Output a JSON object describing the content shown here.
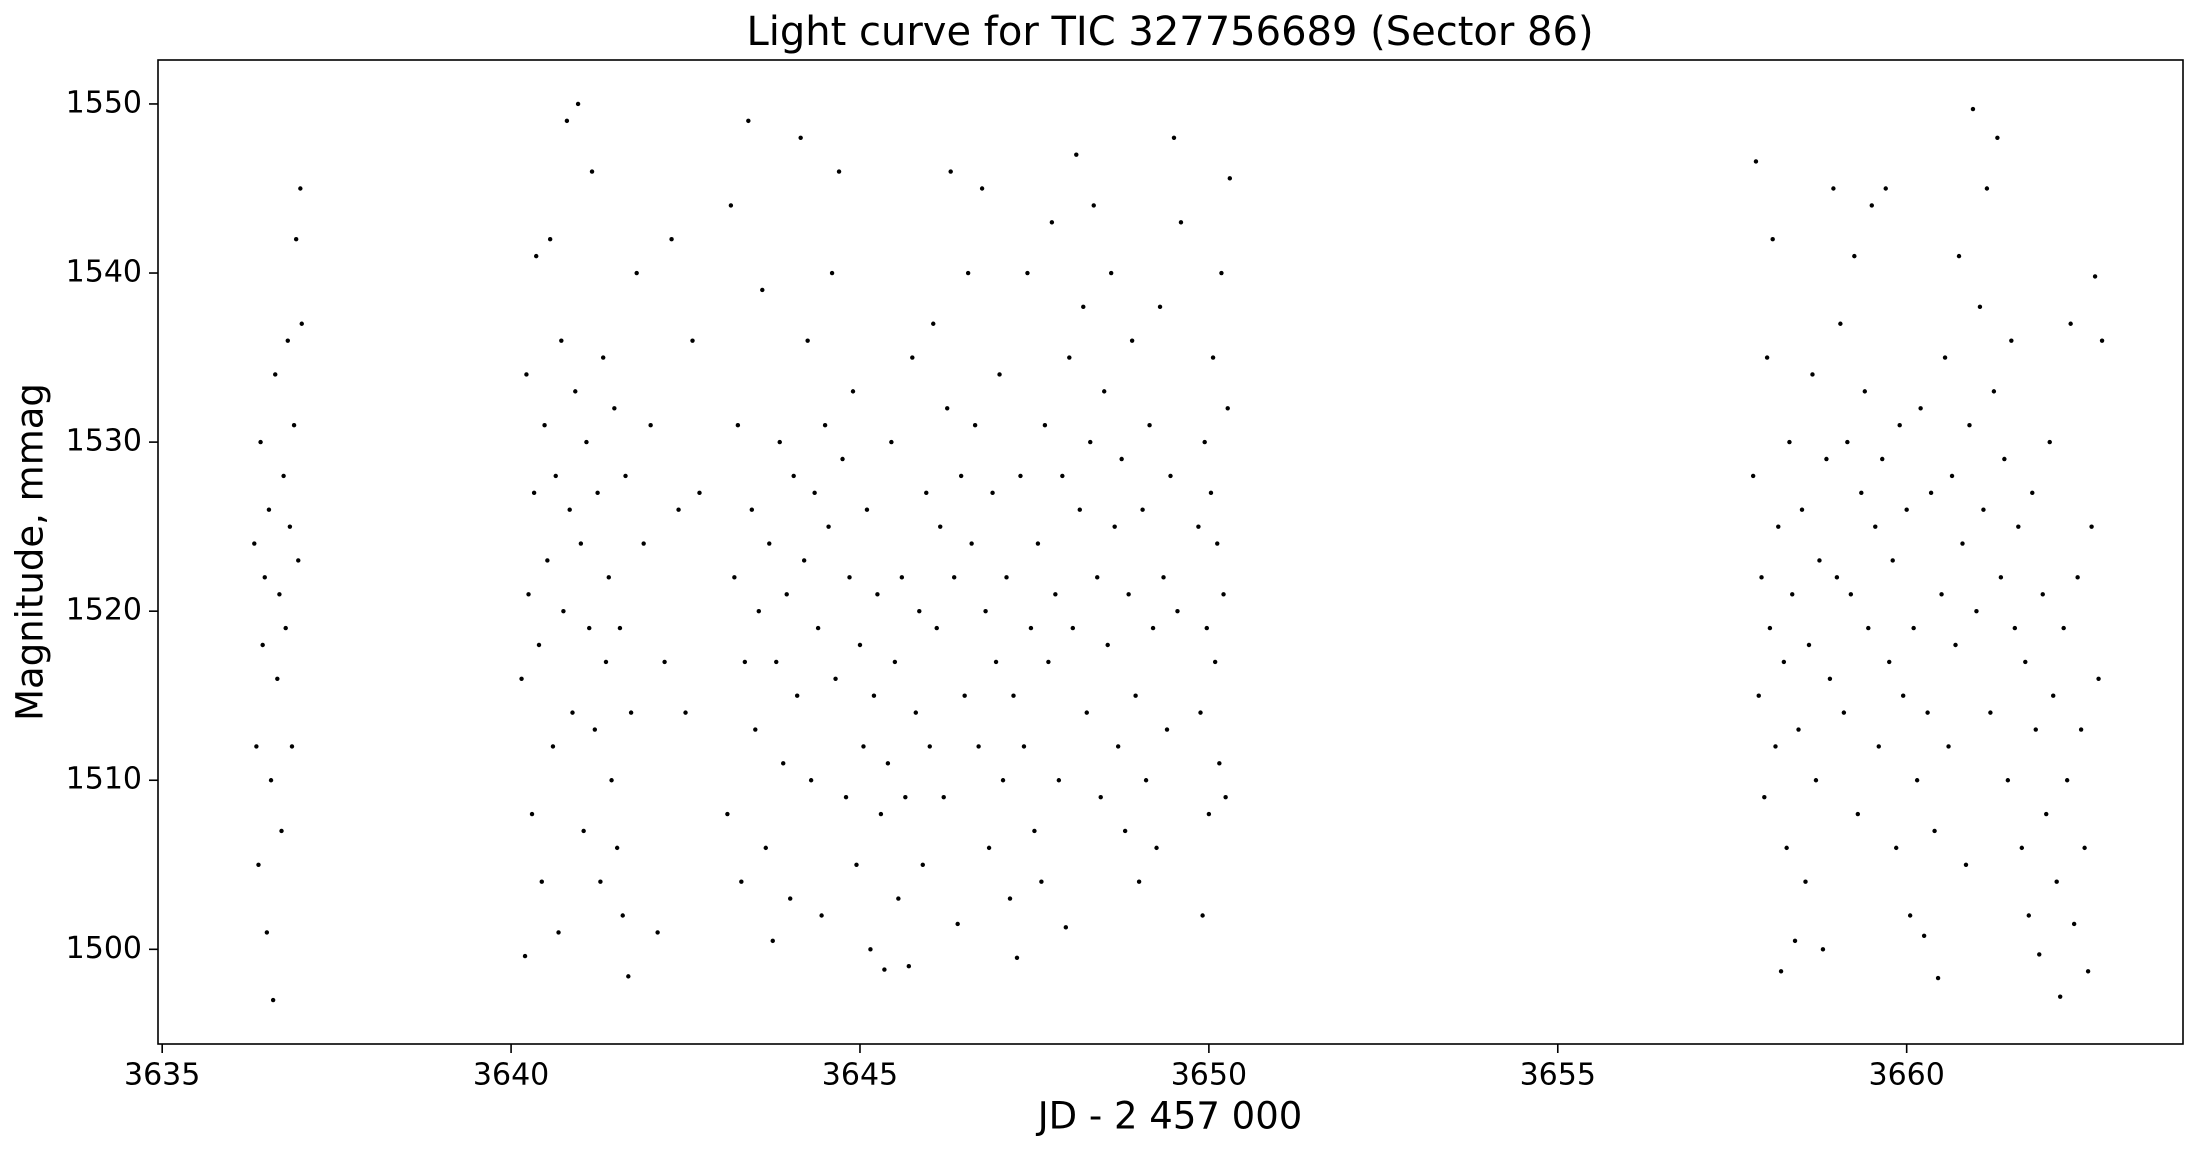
{
  "chart_data": {
    "type": "scatter",
    "title": "Light curve for TIC 327756689 (Sector 86)",
    "x_label": "JD - 2 457 000",
    "y_label": "Magnitude, mmag",
    "xlim": [
      3634.94,
      3663.96
    ],
    "ylim": [
      1494.4,
      1552.6
    ],
    "xticks": [
      3635,
      3640,
      3645,
      3650,
      3655,
      3660
    ],
    "yticks": [
      1500,
      1510,
      1520,
      1530,
      1540,
      1550
    ],
    "color": "#000000",
    "x": [
      3636.32,
      3636.35,
      3636.38,
      3636.41,
      3636.44,
      3636.47,
      3636.5,
      3636.53,
      3636.56,
      3636.59,
      3636.62,
      3636.65,
      3636.68,
      3636.71,
      3636.74,
      3636.77,
      3636.8,
      3636.83,
      3636.86,
      3636.89,
      3636.92,
      3636.95,
      3636.98,
      3637,
      3640.15,
      3640.2,
      3640.22,
      3640.25,
      3640.3,
      3640.33,
      3640.36,
      3640.4,
      3640.44,
      3640.48,
      3640.52,
      3640.56,
      3640.6,
      3640.64,
      3640.68,
      3640.72,
      3640.75,
      3640.8,
      3640.84,
      3640.88,
      3640.92,
      3640.96,
      3641,
      3641.04,
      3641.08,
      3641.12,
      3641.16,
      3641.2,
      3641.24,
      3641.28,
      3641.32,
      3641.36,
      3641.4,
      3641.44,
      3641.48,
      3641.52,
      3641.56,
      3641.6,
      3641.64,
      3641.68,
      3641.72,
      3641.8,
      3641.9,
      3642,
      3642.1,
      3642.2,
      3642.3,
      3642.4,
      3642.5,
      3642.6,
      3642.7,
      3643.1,
      3643.15,
      3643.2,
      3643.25,
      3643.3,
      3643.35,
      3643.4,
      3643.45,
      3643.5,
      3643.55,
      3643.6,
      3643.65,
      3643.7,
      3643.75,
      3643.8,
      3643.85,
      3643.9,
      3643.95,
      3644,
      3644.05,
      3644.1,
      3644.15,
      3644.2,
      3644.25,
      3644.3,
      3644.35,
      3644.4,
      3644.45,
      3644.5,
      3644.55,
      3644.6,
      3644.65,
      3644.7,
      3644.75,
      3644.8,
      3644.85,
      3644.9,
      3644.95,
      3645,
      3645.05,
      3645.1,
      3645.15,
      3645.2,
      3645.25,
      3645.3,
      3645.35,
      3645.4,
      3645.45,
      3645.5,
      3645.55,
      3645.6,
      3645.65,
      3645.7,
      3645.75,
      3645.8,
      3645.85,
      3645.9,
      3645.95,
      3646,
      3646.05,
      3646.1,
      3646.15,
      3646.2,
      3646.25,
      3646.3,
      3646.35,
      3646.4,
      3646.45,
      3646.5,
      3646.55,
      3646.6,
      3646.65,
      3646.7,
      3646.75,
      3646.8,
      3646.85,
      3646.9,
      3646.95,
      3647,
      3647.05,
      3647.1,
      3647.15,
      3647.2,
      3647.25,
      3647.3,
      3647.35,
      3647.4,
      3647.45,
      3647.5,
      3647.55,
      3647.6,
      3647.65,
      3647.7,
      3647.75,
      3647.8,
      3647.85,
      3647.9,
      3647.95,
      3648,
      3648.05,
      3648.1,
      3648.15,
      3648.2,
      3648.25,
      3648.3,
      3648.35,
      3648.4,
      3648.45,
      3648.5,
      3648.55,
      3648.6,
      3648.65,
      3648.7,
      3648.75,
      3648.8,
      3648.85,
      3648.9,
      3648.95,
      3649,
      3649.05,
      3649.1,
      3649.15,
      3649.2,
      3649.25,
      3649.3,
      3649.35,
      3649.4,
      3649.45,
      3649.5,
      3649.55,
      3649.6,
      3649.85,
      3649.88,
      3649.91,
      3649.94,
      3649.97,
      3650,
      3650.03,
      3650.06,
      3650.09,
      3650.12,
      3650.15,
      3650.18,
      3650.21,
      3650.24,
      3650.27,
      3650.3,
      3657.8,
      3657.84,
      3657.88,
      3657.92,
      3657.96,
      3658,
      3658.04,
      3658.08,
      3658.12,
      3658.16,
      3658.2,
      3658.24,
      3658.28,
      3658.32,
      3658.36,
      3658.4,
      3658.45,
      3658.5,
      3658.55,
      3658.6,
      3658.65,
      3658.7,
      3658.75,
      3658.8,
      3658.85,
      3658.9,
      3658.95,
      3659,
      3659.05,
      3659.1,
      3659.15,
      3659.2,
      3659.25,
      3659.3,
      3659.35,
      3659.4,
      3659.45,
      3659.5,
      3659.55,
      3659.6,
      3659.65,
      3659.7,
      3659.75,
      3659.8,
      3659.85,
      3659.9,
      3659.95,
      3660,
      3660.05,
      3660.1,
      3660.15,
      3660.2,
      3660.25,
      3660.3,
      3660.35,
      3660.4,
      3660.45,
      3660.5,
      3660.55,
      3660.6,
      3660.65,
      3660.7,
      3660.75,
      3660.8,
      3660.85,
      3660.9,
      3660.95,
      3661,
      3661.05,
      3661.1,
      3661.15,
      3661.2,
      3661.25,
      3661.3,
      3661.35,
      3661.4,
      3661.45,
      3661.5,
      3661.55,
      3661.6,
      3661.65,
      3661.7,
      3661.75,
      3661.8,
      3661.85,
      3661.9,
      3661.95,
      3662,
      3662.05,
      3662.1,
      3662.15,
      3662.2,
      3662.25,
      3662.3,
      3662.35,
      3662.4,
      3662.45,
      3662.5,
      3662.55,
      3662.6,
      3662.65,
      3662.7,
      3662.75,
      3662.8
    ],
    "values": [
      1524,
      1512,
      1505,
      1530,
      1518,
      1522,
      1501,
      1526,
      1510,
      1497,
      1534,
      1516,
      1521,
      1507,
      1528,
      1519,
      1536,
      1525,
      1512,
      1531,
      1542,
      1523,
      1545,
      1537,
      1516,
      1499.6,
      1534,
      1521,
      1508,
      1527,
      1541,
      1518,
      1504,
      1531,
      1523,
      1542,
      1512,
      1528,
      1501,
      1536,
      1520,
      1549,
      1526,
      1514,
      1533,
      1550,
      1524,
      1507,
      1530,
      1519,
      1546,
      1513,
      1527,
      1504,
      1535,
      1517,
      1522,
      1510,
      1532,
      1506,
      1519,
      1502,
      1528,
      1498.4,
      1514,
      1540,
      1524,
      1531,
      1501,
      1517,
      1542,
      1526,
      1514,
      1536,
      1527,
      1508,
      1544,
      1522,
      1531,
      1504,
      1517,
      1549,
      1526,
      1513,
      1520,
      1539,
      1506,
      1524,
      1500.5,
      1517,
      1530,
      1511,
      1521,
      1503,
      1528,
      1515,
      1548,
      1523,
      1536,
      1510,
      1527,
      1519,
      1502,
      1531,
      1525,
      1540,
      1516,
      1546,
      1529,
      1509,
      1522,
      1533,
      1505,
      1518,
      1512,
      1526,
      1500,
      1515,
      1521,
      1508,
      1498.8,
      1511,
      1530,
      1517,
      1503,
      1522,
      1509,
      1499,
      1535,
      1514,
      1520,
      1505,
      1527,
      1512,
      1537,
      1519,
      1525,
      1509,
      1532,
      1546,
      1522,
      1501.5,
      1528,
      1515,
      1540,
      1524,
      1531,
      1512,
      1545,
      1520,
      1506,
      1527,
      1517,
      1534,
      1510,
      1522,
      1503,
      1515,
      1499.5,
      1528,
      1512,
      1540,
      1519,
      1507,
      1524,
      1504,
      1531,
      1517,
      1543,
      1521,
      1510,
      1528,
      1501.3,
      1535,
      1519,
      1547,
      1526,
      1538,
      1514,
      1530,
      1544,
      1522,
      1509,
      1533,
      1518,
      1540,
      1525,
      1512,
      1529,
      1507,
      1521,
      1536,
      1515,
      1504,
      1526,
      1510,
      1531,
      1519,
      1506,
      1538,
      1522,
      1513,
      1528,
      1548,
      1520,
      1543,
      1525,
      1514,
      1502,
      1530,
      1519,
      1508,
      1527,
      1535,
      1517,
      1524,
      1511,
      1540,
      1521,
      1509,
      1532,
      1545.6,
      1528,
      1546.6,
      1515,
      1522,
      1509,
      1535,
      1519,
      1542,
      1512,
      1525,
      1498.7,
      1517,
      1506,
      1530,
      1521,
      1500.5,
      1513,
      1526,
      1504,
      1518,
      1534,
      1510,
      1523,
      1500,
      1529,
      1516,
      1545,
      1522,
      1537,
      1514,
      1530,
      1521,
      1541,
      1508,
      1527,
      1533,
      1519,
      1544,
      1525,
      1512,
      1529,
      1545,
      1517,
      1523,
      1506,
      1531,
      1515,
      1526,
      1502,
      1519,
      1510,
      1532,
      1500.8,
      1514,
      1527,
      1507,
      1498.3,
      1521,
      1535,
      1512,
      1528,
      1518,
      1541,
      1524,
      1505,
      1531,
      1549.7,
      1520,
      1538,
      1526,
      1545,
      1514,
      1533,
      1548,
      1522,
      1529,
      1510,
      1536,
      1519,
      1525,
      1506,
      1517,
      1502,
      1527,
      1513,
      1499.7,
      1521,
      1508,
      1530,
      1515,
      1504,
      1497.2,
      1519,
      1510,
      1537,
      1501.5,
      1522,
      1513,
      1506,
      1498.7,
      1525,
      1539.8,
      1516,
      1536
    ]
  }
}
